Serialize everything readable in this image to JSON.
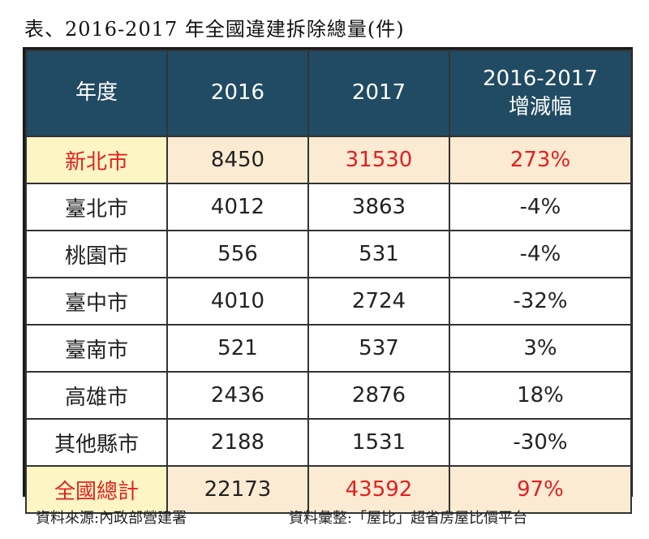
{
  "title": "表、2016-2017 年全國違建拆除總量(件)",
  "table": {
    "headers": [
      "年度",
      "2016",
      "2017",
      "2016-2017 增減幅"
    ],
    "rows": [
      {
        "region": "新北市",
        "y2016": "8450",
        "y2017": "31530",
        "change": "273%"
      },
      {
        "region": "臺北市",
        "y2016": "4012",
        "y2017": "3863",
        "change": "-4%"
      },
      {
        "region": "桃園市",
        "y2016": "556",
        "y2017": "531",
        "change": "-4%"
      },
      {
        "region": "臺中市",
        "y2016": "4010",
        "y2017": "2724",
        "change": "-32%"
      },
      {
        "region": "臺南市",
        "y2016": "521",
        "y2017": "537",
        "change": "3%"
      },
      {
        "region": "高雄市",
        "y2016": "2436",
        "y2017": "2876",
        "change": "18%"
      },
      {
        "region": "其他縣市",
        "y2016": "2188",
        "y2017": "1531",
        "change": "-30%"
      },
      {
        "region": "全國總計",
        "y2016": "22173",
        "y2017": "43592",
        "change": "97%"
      }
    ]
  },
  "source": {
    "data_source": "資料來源:內政部營建署",
    "compiled_by": "資料彙整:「屋比」超省房屋比價平台"
  },
  "colors": {
    "header_bg": "#214b63",
    "highlight_label_bg": "#fdf6c4",
    "highlight_bg": "#fcebd3",
    "highlight_text": "#e41f1f"
  }
}
